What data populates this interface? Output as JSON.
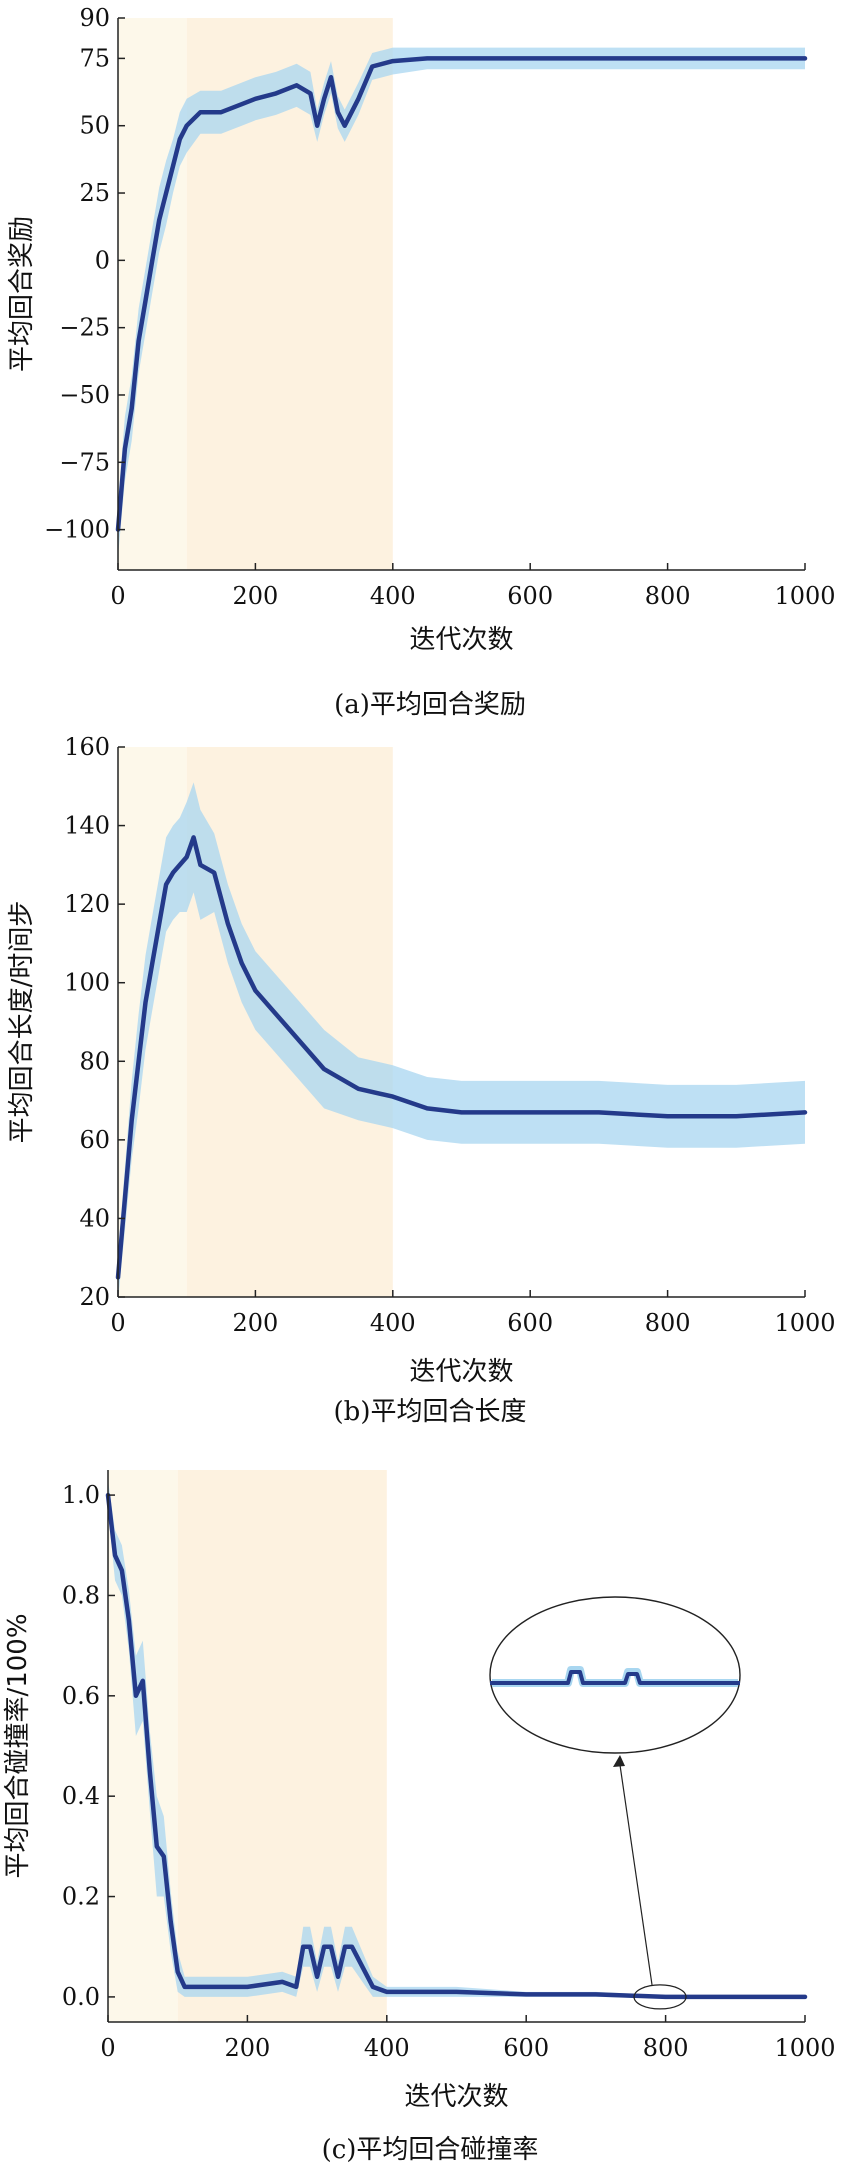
{
  "chart_data": [
    {
      "type": "line",
      "caption": "(a)平均回合奖励",
      "xlabel": "迭代次数",
      "ylabel": "平均回合奖励",
      "xlim": [
        0,
        1000
      ],
      "ylim": [
        -115,
        90
      ],
      "xticks": [
        0,
        200,
        400,
        600,
        800,
        1000
      ],
      "yticks": [
        -100,
        -75,
        -50,
        -25,
        0,
        25,
        50,
        75,
        90
      ],
      "shaded_regions": [
        {
          "x": [
            0,
            100
          ],
          "color": "#fdf8ea"
        },
        {
          "x": [
            100,
            400
          ],
          "color": "#fdf2e0"
        }
      ],
      "series": [
        {
          "color": "#243a8a",
          "band_color": "#a8d6f0",
          "x": [
            0,
            10,
            20,
            30,
            40,
            50,
            60,
            70,
            80,
            90,
            100,
            120,
            150,
            180,
            200,
            230,
            260,
            280,
            290,
            300,
            310,
            320,
            330,
            350,
            370,
            400,
            450,
            500,
            600,
            700,
            800,
            900,
            1000
          ],
          "y": [
            -100,
            -70,
            -55,
            -30,
            -15,
            0,
            15,
            25,
            35,
            45,
            50,
            55,
            55,
            58,
            60,
            62,
            65,
            62,
            50,
            60,
            68,
            55,
            50,
            60,
            72,
            74,
            75,
            75,
            75,
            75,
            75,
            75,
            75
          ],
          "band": [
            10,
            12,
            12,
            12,
            12,
            12,
            12,
            12,
            10,
            10,
            10,
            8,
            8,
            8,
            8,
            8,
            8,
            8,
            6,
            6,
            6,
            6,
            6,
            6,
            5,
            5,
            4,
            4,
            4,
            4,
            4,
            4,
            4
          ]
        }
      ]
    },
    {
      "type": "line",
      "caption": "(b)平均回合长度",
      "xlabel": "迭代次数",
      "ylabel": "平均回合长度/时间步",
      "xlim": [
        0,
        1000
      ],
      "ylim": [
        20,
        160
      ],
      "xticks": [
        0,
        200,
        400,
        600,
        800,
        1000
      ],
      "yticks": [
        20,
        40,
        60,
        80,
        100,
        120,
        140,
        160
      ],
      "shaded_regions": [
        {
          "x": [
            0,
            100
          ],
          "color": "#fdf8ea"
        },
        {
          "x": [
            100,
            400
          ],
          "color": "#fdf2e0"
        }
      ],
      "series": [
        {
          "color": "#243a8a",
          "band_color": "#a8d6f0",
          "x": [
            0,
            10,
            20,
            30,
            40,
            50,
            60,
            70,
            80,
            90,
            100,
            110,
            120,
            140,
            160,
            180,
            200,
            250,
            300,
            350,
            400,
            450,
            500,
            600,
            700,
            800,
            900,
            1000
          ],
          "y": [
            25,
            45,
            65,
            80,
            95,
            105,
            115,
            125,
            128,
            130,
            132,
            137,
            130,
            128,
            115,
            105,
            98,
            88,
            78,
            73,
            71,
            68,
            67,
            67,
            67,
            66,
            66,
            67
          ],
          "band": [
            6,
            8,
            10,
            12,
            12,
            12,
            12,
            12,
            12,
            12,
            14,
            14,
            14,
            10,
            10,
            10,
            10,
            10,
            10,
            8,
            8,
            8,
            8,
            8,
            8,
            8,
            8,
            8
          ]
        }
      ]
    },
    {
      "type": "line",
      "caption": "(c)平均回合碰撞率",
      "xlabel": "迭代次数",
      "ylabel": "平均回合碰撞率/100%",
      "xlim": [
        0,
        1000
      ],
      "ylim": [
        -0.05,
        1.05
      ],
      "xticks": [
        0,
        200,
        400,
        600,
        800,
        1000
      ],
      "yticks": [
        0.0,
        0.2,
        0.4,
        0.6,
        0.8,
        1.0
      ],
      "ytick_labels": [
        "0.0",
        "0.2",
        "0.4",
        "0.6",
        "0.8",
        "1.0"
      ],
      "shaded_regions": [
        {
          "x": [
            0,
            100
          ],
          "color": "#fdf8ea"
        },
        {
          "x": [
            100,
            400
          ],
          "color": "#fdf2e0"
        }
      ],
      "series": [
        {
          "color": "#243a8a",
          "band_color": "#a8d6f0",
          "x": [
            0,
            10,
            20,
            30,
            40,
            50,
            60,
            70,
            80,
            90,
            100,
            110,
            120,
            150,
            200,
            250,
            270,
            280,
            290,
            300,
            310,
            320,
            330,
            340,
            350,
            380,
            400,
            450,
            500,
            600,
            700,
            800,
            900,
            1000
          ],
          "y": [
            1.0,
            0.88,
            0.85,
            0.75,
            0.6,
            0.63,
            0.45,
            0.3,
            0.28,
            0.15,
            0.05,
            0.02,
            0.02,
            0.02,
            0.02,
            0.03,
            0.02,
            0.1,
            0.1,
            0.04,
            0.1,
            0.1,
            0.04,
            0.1,
            0.1,
            0.02,
            0.01,
            0.01,
            0.01,
            0.005,
            0.005,
            0.0,
            0.0,
            0.0
          ],
          "band": [
            0.03,
            0.05,
            0.05,
            0.06,
            0.08,
            0.08,
            0.08,
            0.1,
            0.08,
            0.06,
            0.04,
            0.02,
            0.02,
            0.02,
            0.02,
            0.02,
            0.02,
            0.04,
            0.04,
            0.03,
            0.04,
            0.04,
            0.03,
            0.04,
            0.04,
            0.02,
            0.01,
            0.01,
            0.01,
            0.005,
            0.005,
            0.003,
            0.003,
            0.003
          ]
        }
      ]
    }
  ]
}
